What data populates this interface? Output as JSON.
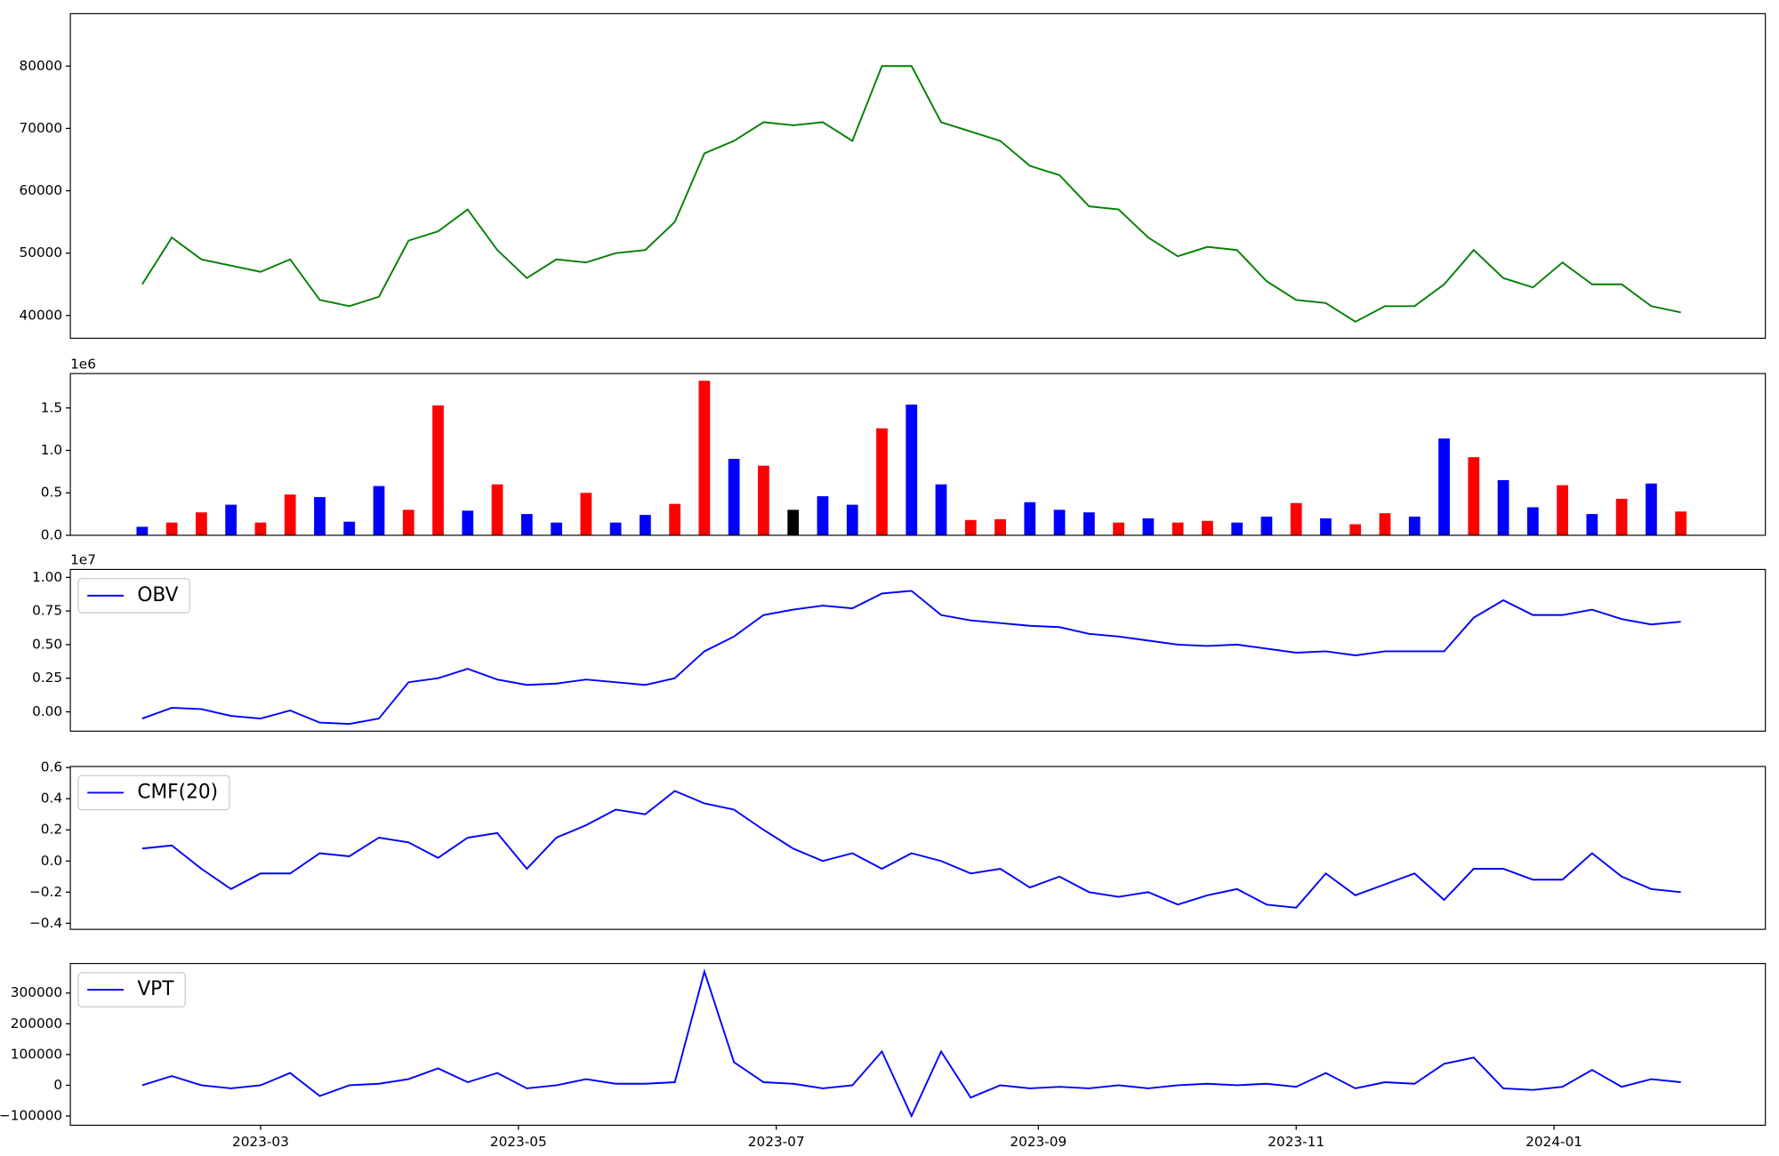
{
  "chart_data": [
    {
      "type": "line",
      "xlim": [
        "2023-01-15",
        "2024-02-20"
      ],
      "x": [
        "2023-02-01",
        "2023-02-08",
        "2023-02-15",
        "2023-02-22",
        "2023-03-01",
        "2023-03-08",
        "2023-03-15",
        "2023-03-22",
        "2023-03-29",
        "2023-04-05",
        "2023-04-12",
        "2023-04-19",
        "2023-04-26",
        "2023-05-03",
        "2023-05-10",
        "2023-05-17",
        "2023-05-24",
        "2023-05-31",
        "2023-06-07",
        "2023-06-14",
        "2023-06-21",
        "2023-06-28",
        "2023-07-05",
        "2023-07-12",
        "2023-07-19",
        "2023-07-26",
        "2023-08-02",
        "2023-08-09",
        "2023-08-16",
        "2023-08-23",
        "2023-08-30",
        "2023-09-06",
        "2023-09-13",
        "2023-09-20",
        "2023-09-27",
        "2023-10-04",
        "2023-10-11",
        "2023-10-18",
        "2023-10-25",
        "2023-11-01",
        "2023-11-08",
        "2023-11-15",
        "2023-11-22",
        "2023-11-29",
        "2023-12-06",
        "2023-12-13",
        "2023-12-20",
        "2023-12-27",
        "2024-01-03",
        "2024-01-10",
        "2024-01-17",
        "2024-01-24",
        "2024-01-31"
      ],
      "series": [
        {
          "color": "green",
          "values": [
            45000,
            52500,
            49000,
            48000,
            47000,
            49000,
            42500,
            41500,
            43000,
            52000,
            53500,
            57000,
            50500,
            46000,
            49000,
            48500,
            50000,
            50500,
            55000,
            66000,
            68000,
            71000,
            70500,
            71000,
            68000,
            80000,
            80000,
            71000,
            69500,
            68000,
            64000,
            62500,
            57500,
            57000,
            52500,
            49500,
            51000,
            50500,
            45500,
            42500,
            42000,
            39000,
            41500,
            41500,
            45000,
            50500,
            46000,
            44500,
            48500,
            45000,
            45000,
            41500,
            40500
          ]
        }
      ],
      "ylim": [
        36350,
        88400
      ],
      "yticks": [
        40000,
        50000,
        60000,
        70000,
        80000
      ]
    },
    {
      "type": "bar",
      "xlim": [
        "2023-01-15",
        "2024-02-20"
      ],
      "x": [
        "2023-02-01",
        "2023-02-08",
        "2023-02-15",
        "2023-02-22",
        "2023-03-01",
        "2023-03-08",
        "2023-03-15",
        "2023-03-22",
        "2023-03-29",
        "2023-04-05",
        "2023-04-12",
        "2023-04-19",
        "2023-04-26",
        "2023-05-03",
        "2023-05-10",
        "2023-05-17",
        "2023-05-24",
        "2023-05-31",
        "2023-06-07",
        "2023-06-14",
        "2023-06-21",
        "2023-06-28",
        "2023-07-05",
        "2023-07-12",
        "2023-07-19",
        "2023-07-26",
        "2023-08-02",
        "2023-08-09",
        "2023-08-16",
        "2023-08-23",
        "2023-08-30",
        "2023-09-06",
        "2023-09-13",
        "2023-09-20",
        "2023-09-27",
        "2023-10-04",
        "2023-10-11",
        "2023-10-18",
        "2023-10-25",
        "2023-11-01",
        "2023-11-08",
        "2023-11-15",
        "2023-11-22",
        "2023-11-29",
        "2023-12-06",
        "2023-12-13",
        "2023-12-20",
        "2023-12-27",
        "2024-01-03",
        "2024-01-10",
        "2024-01-17",
        "2024-01-24",
        "2024-01-31"
      ],
      "values": [
        100000,
        150000,
        270000,
        360000,
        150000,
        480000,
        450000,
        160000,
        580000,
        300000,
        1530000,
        290000,
        600000,
        250000,
        150000,
        500000,
        150000,
        240000,
        370000,
        1820000,
        900000,
        820000,
        300000,
        460000,
        360000,
        1260000,
        1540000,
        600000,
        180000,
        190000,
        390000,
        300000,
        270000,
        150000,
        200000,
        150000,
        170000,
        150000,
        220000,
        380000,
        200000,
        130000,
        260000,
        220000,
        1140000,
        920000,
        650000,
        330000,
        590000,
        250000,
        430000,
        610000,
        280000
      ],
      "colors": [
        "blue",
        "red",
        "red",
        "blue",
        "red",
        "red",
        "blue",
        "blue",
        "blue",
        "red",
        "red",
        "blue",
        "red",
        "blue",
        "blue",
        "red",
        "blue",
        "blue",
        "red",
        "red",
        "blue",
        "red",
        "black",
        "blue",
        "blue",
        "red",
        "blue",
        "blue",
        "red",
        "red",
        "blue",
        "blue",
        "blue",
        "red",
        "blue",
        "red",
        "red",
        "blue",
        "blue",
        "red",
        "blue",
        "red",
        "red",
        "blue",
        "blue",
        "red",
        "blue",
        "blue",
        "red",
        "blue",
        "red",
        "blue",
        "red"
      ],
      "ylim": [
        0,
        1905000
      ],
      "offset_label": "1e6",
      "yticks": [
        {
          "value": 0,
          "label": "0.0"
        },
        {
          "value": 500000,
          "label": "0.5"
        },
        {
          "value": 1000000,
          "label": "1.0"
        },
        {
          "value": 1500000,
          "label": "1.5"
        }
      ]
    },
    {
      "type": "line",
      "xlim": [
        "2023-01-15",
        "2024-02-20"
      ],
      "legend": "upper left",
      "x": [
        "2023-02-01",
        "2023-02-08",
        "2023-02-15",
        "2023-02-22",
        "2023-03-01",
        "2023-03-08",
        "2023-03-15",
        "2023-03-22",
        "2023-03-29",
        "2023-04-05",
        "2023-04-12",
        "2023-04-19",
        "2023-04-26",
        "2023-05-03",
        "2023-05-10",
        "2023-05-17",
        "2023-05-24",
        "2023-05-31",
        "2023-06-07",
        "2023-06-14",
        "2023-06-21",
        "2023-06-28",
        "2023-07-05",
        "2023-07-12",
        "2023-07-19",
        "2023-07-26",
        "2023-08-02",
        "2023-08-09",
        "2023-08-16",
        "2023-08-23",
        "2023-08-30",
        "2023-09-06",
        "2023-09-13",
        "2023-09-20",
        "2023-09-27",
        "2023-10-04",
        "2023-10-11",
        "2023-10-18",
        "2023-10-25",
        "2023-11-01",
        "2023-11-08",
        "2023-11-15",
        "2023-11-22",
        "2023-11-29",
        "2023-12-06",
        "2023-12-13",
        "2023-12-20",
        "2023-12-27",
        "2024-01-03",
        "2024-01-10",
        "2024-01-17",
        "2024-01-24",
        "2024-01-31"
      ],
      "series": [
        {
          "name": "OBV",
          "color": "blue",
          "values": [
            -500000,
            300000,
            200000,
            -300000,
            -500000,
            100000,
            -800000,
            -900000,
            -500000,
            2200000,
            2500000,
            3200000,
            2400000,
            2000000,
            2100000,
            2400000,
            2200000,
            2000000,
            2500000,
            4500000,
            5600000,
            7200000,
            7600000,
            7900000,
            7700000,
            8800000,
            9000000,
            7200000,
            6800000,
            6600000,
            6400000,
            6300000,
            5800000,
            5600000,
            5300000,
            5000000,
            4900000,
            5000000,
            4700000,
            4400000,
            4500000,
            4200000,
            4500000,
            4500000,
            4500000,
            7000000,
            8300000,
            7200000,
            7200000,
            7600000,
            6900000,
            6500000,
            6700000
          ]
        }
      ],
      "ylim": [
        -1440000,
        10590000
      ],
      "offset_label": "1e7",
      "yticks": [
        {
          "value": 0,
          "label": "0.00"
        },
        {
          "value": 2500000,
          "label": "0.25"
        },
        {
          "value": 5000000,
          "label": "0.50"
        },
        {
          "value": 7500000,
          "label": "0.75"
        },
        {
          "value": 10000000,
          "label": "1.00"
        }
      ]
    },
    {
      "type": "line",
      "xlim": [
        "2023-01-15",
        "2024-02-20"
      ],
      "legend": "upper left",
      "x": [
        "2023-02-01",
        "2023-02-08",
        "2023-02-15",
        "2023-02-22",
        "2023-03-01",
        "2023-03-08",
        "2023-03-15",
        "2023-03-22",
        "2023-03-29",
        "2023-04-05",
        "2023-04-12",
        "2023-04-19",
        "2023-04-26",
        "2023-05-03",
        "2023-05-10",
        "2023-05-17",
        "2023-05-24",
        "2023-05-31",
        "2023-06-07",
        "2023-06-14",
        "2023-06-21",
        "2023-06-28",
        "2023-07-05",
        "2023-07-12",
        "2023-07-19",
        "2023-07-26",
        "2023-08-02",
        "2023-08-09",
        "2023-08-16",
        "2023-08-23",
        "2023-08-30",
        "2023-09-06",
        "2023-09-13",
        "2023-09-20",
        "2023-09-27",
        "2023-10-04",
        "2023-10-11",
        "2023-10-18",
        "2023-10-25",
        "2023-11-01",
        "2023-11-08",
        "2023-11-15",
        "2023-11-22",
        "2023-11-29",
        "2023-12-06",
        "2023-12-13",
        "2023-12-20",
        "2023-12-27",
        "2024-01-03",
        "2024-01-10",
        "2024-01-17",
        "2024-01-24",
        "2024-01-31"
      ],
      "series": [
        {
          "name": "CMF(20)",
          "color": "blue",
          "values": [
            0.08,
            0.1,
            -0.05,
            -0.18,
            -0.08,
            -0.08,
            0.05,
            0.03,
            0.15,
            0.12,
            0.02,
            0.15,
            0.18,
            -0.05,
            0.15,
            0.23,
            0.33,
            0.3,
            0.45,
            0.37,
            0.33,
            0.2,
            0.08,
            0.0,
            0.05,
            -0.05,
            0.05,
            0.0,
            -0.08,
            -0.05,
            -0.17,
            -0.1,
            -0.2,
            -0.23,
            -0.2,
            -0.28,
            -0.22,
            -0.18,
            -0.28,
            -0.3,
            -0.08,
            -0.22,
            -0.15,
            -0.08,
            -0.25,
            -0.05,
            -0.05,
            -0.12,
            -0.12,
            0.05,
            -0.1,
            -0.18,
            -0.2
          ]
        }
      ],
      "ylim": [
        -0.439,
        0.607
      ],
      "yticks": [
        {
          "value": -0.4,
          "label": "−0.4"
        },
        {
          "value": -0.2,
          "label": "−0.2"
        },
        {
          "value": 0,
          "label": "0.0"
        },
        0.2,
        0.4,
        0.6
      ]
    },
    {
      "type": "line",
      "xlim": [
        "2023-01-15",
        "2024-02-20"
      ],
      "legend": "upper left",
      "x": [
        "2023-02-01",
        "2023-02-08",
        "2023-02-15",
        "2023-02-22",
        "2023-03-01",
        "2023-03-08",
        "2023-03-15",
        "2023-03-22",
        "2023-03-29",
        "2023-04-05",
        "2023-04-12",
        "2023-04-19",
        "2023-04-26",
        "2023-05-03",
        "2023-05-10",
        "2023-05-17",
        "2023-05-24",
        "2023-05-31",
        "2023-06-07",
        "2023-06-14",
        "2023-06-21",
        "2023-06-28",
        "2023-07-05",
        "2023-07-12",
        "2023-07-19",
        "2023-07-26",
        "2023-08-02",
        "2023-08-09",
        "2023-08-16",
        "2023-08-23",
        "2023-08-30",
        "2023-09-06",
        "2023-09-13",
        "2023-09-20",
        "2023-09-27",
        "2023-10-04",
        "2023-10-11",
        "2023-10-18",
        "2023-10-25",
        "2023-11-01",
        "2023-11-08",
        "2023-11-15",
        "2023-11-22",
        "2023-11-29",
        "2023-12-06",
        "2023-12-13",
        "2023-12-20",
        "2023-12-27",
        "2024-01-03",
        "2024-01-10",
        "2024-01-17",
        "2024-01-24",
        "2024-01-31"
      ],
      "series": [
        {
          "name": "VPT",
          "color": "blue",
          "values": [
            0,
            30000,
            0,
            -10000,
            0,
            40000,
            -35000,
            0,
            5000,
            20000,
            55000,
            10000,
            40000,
            -10000,
            0,
            20000,
            5000,
            5000,
            10000,
            370000,
            75000,
            10000,
            5000,
            -10000,
            0,
            110000,
            -100000,
            110000,
            -40000,
            0,
            -10000,
            -5000,
            -10000,
            0,
            -10000,
            0,
            5000,
            0,
            5000,
            -5000,
            40000,
            -10000,
            10000,
            5000,
            70000,
            90000,
            -10000,
            -15000,
            -5000,
            50000,
            -5000,
            20000,
            10000
          ]
        }
      ],
      "ylim": [
        -130000,
        396000
      ],
      "yticks": [
        {
          "value": -100000,
          "label": "−100000"
        },
        0,
        100000,
        200000,
        300000
      ],
      "xticks": [
        "2023-03",
        "2023-05",
        "2023-07",
        "2023-09",
        "2023-11",
        "2024-01"
      ]
    }
  ]
}
